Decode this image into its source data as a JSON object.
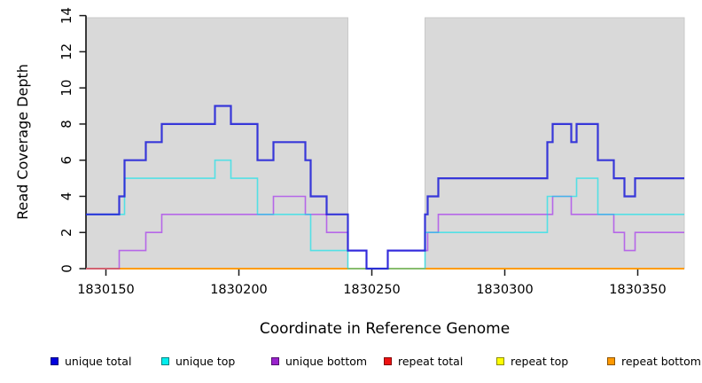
{
  "chart_data": {
    "type": "line",
    "subtype": "step-coverage-plot",
    "title": "",
    "xlabel": "Coordinate in Reference Genome",
    "ylabel": "Read Coverage Depth",
    "xlim": [
      1830142.5,
      1830367.5
    ],
    "ylim": [
      0,
      14
    ],
    "grid": false,
    "plot_background": "#d9d9d9",
    "gap_region": {
      "x_start": 1830241,
      "x_end": 1830270
    },
    "x_ticks": [
      {
        "value": 1830150,
        "label": "1830150"
      },
      {
        "value": 1830200,
        "label": "1830200"
      },
      {
        "value": 1830250,
        "label": "1830250"
      },
      {
        "value": 1830300,
        "label": "1830300"
      },
      {
        "value": 1830350,
        "label": "1830350"
      }
    ],
    "y_ticks": [
      {
        "value": 0,
        "label": "0"
      },
      {
        "value": 2,
        "label": "2"
      },
      {
        "value": 4,
        "label": "4"
      },
      {
        "value": 6,
        "label": "6"
      },
      {
        "value": 8,
        "label": "8"
      },
      {
        "value": 10,
        "label": "10"
      },
      {
        "value": 12,
        "label": "12"
      },
      {
        "value": 14,
        "label": "14"
      }
    ],
    "series": [
      {
        "name": "unique total",
        "color": "#2020d8",
        "opacity": 0.88,
        "width": 2.2,
        "z": 6,
        "steps": [
          [
            1830143,
            3
          ],
          [
            1830155,
            4
          ],
          [
            1830157,
            6
          ],
          [
            1830165,
            7
          ],
          [
            1830171,
            8
          ],
          [
            1830191,
            9
          ],
          [
            1830197,
            8
          ],
          [
            1830207,
            6
          ],
          [
            1830213,
            7
          ],
          [
            1830225,
            6
          ],
          [
            1830227,
            4
          ],
          [
            1830233,
            3
          ],
          [
            1830241,
            1
          ],
          [
            1830248,
            0
          ],
          [
            1830256,
            1
          ],
          [
            1830270,
            3
          ],
          [
            1830271,
            4
          ],
          [
            1830275,
            5
          ],
          [
            1830316,
            7
          ],
          [
            1830318,
            8
          ],
          [
            1830325,
            7
          ],
          [
            1830327,
            8
          ],
          [
            1830335,
            6
          ],
          [
            1830341,
            5
          ],
          [
            1830345,
            4
          ],
          [
            1830349,
            5
          ]
        ]
      },
      {
        "name": "unique top",
        "color": "#00e4ec",
        "opacity": 0.62,
        "width": 1.6,
        "z": 5,
        "steps": [
          [
            1830143,
            3
          ],
          [
            1830157,
            5
          ],
          [
            1830191,
            6
          ],
          [
            1830197,
            5
          ],
          [
            1830207,
            3
          ],
          [
            1830227,
            1
          ],
          [
            1830241,
            0
          ],
          [
            1830270,
            2
          ],
          [
            1830316,
            4
          ],
          [
            1830327,
            5
          ],
          [
            1830335,
            3
          ]
        ]
      },
      {
        "name": "unique bottom",
        "color": "#a020f0",
        "opacity": 0.62,
        "width": 1.6,
        "z": 4,
        "steps": [
          [
            1830143,
            0
          ],
          [
            1830155,
            1
          ],
          [
            1830165,
            2
          ],
          [
            1830171,
            3
          ],
          [
            1830213,
            4
          ],
          [
            1830225,
            3
          ],
          [
            1830233,
            2
          ],
          [
            1830241,
            1
          ],
          [
            1830248,
            0
          ],
          [
            1830256,
            1
          ],
          [
            1830271,
            2
          ],
          [
            1830275,
            3
          ],
          [
            1830318,
            4
          ],
          [
            1830325,
            3
          ],
          [
            1830341,
            2
          ],
          [
            1830345,
            1
          ],
          [
            1830349,
            2
          ]
        ]
      },
      {
        "name": "repeat total",
        "color": "#ee0000",
        "opacity": 1,
        "width": 1.5,
        "z": 1,
        "steps": [
          [
            1830143,
            0
          ]
        ]
      },
      {
        "name": "repeat top",
        "color": "#ffff00",
        "opacity": 1,
        "width": 1.5,
        "z": 2,
        "steps": [
          [
            1830143,
            0
          ]
        ]
      },
      {
        "name": "repeat bottom",
        "color": "#ff9b00",
        "opacity": 1,
        "width": 2,
        "z": 3,
        "steps": [
          [
            1830143,
            0
          ]
        ]
      }
    ]
  },
  "legend": {
    "items": [
      {
        "label": "unique total",
        "color": "#0000dd"
      },
      {
        "label": "unique top",
        "color": "#00eeee"
      },
      {
        "label": "unique bottom",
        "color": "#9922cc"
      },
      {
        "label": "repeat total",
        "color": "#ee1111"
      },
      {
        "label": "repeat top",
        "color": "#ffff00"
      },
      {
        "label": "repeat bottom",
        "color": "#ff9900"
      }
    ]
  }
}
